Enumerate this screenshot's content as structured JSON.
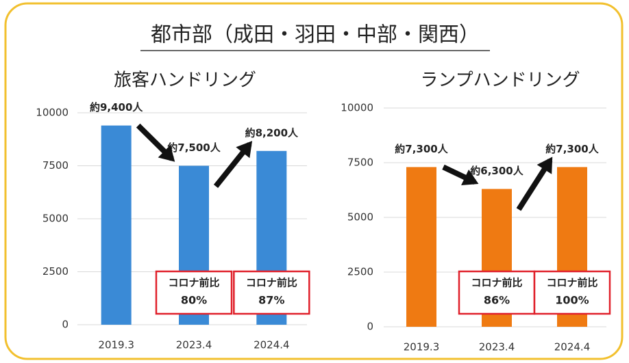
{
  "title": "都市部（成田・羽田・中部・関西）",
  "chart_data": [
    {
      "type": "bar",
      "title": "旅客ハンドリング",
      "categories": [
        "2019.3",
        "2023.4",
        "2024.4"
      ],
      "values": [
        9400,
        7500,
        8200
      ],
      "value_labels": [
        "約9,400人",
        "約7,500人",
        "約8,200人"
      ],
      "color": "#3a8ad6",
      "ylim": [
        0,
        10000
      ],
      "yticks": [
        0,
        2500,
        5000,
        7500,
        10000
      ],
      "grid": true,
      "annotations": [
        {
          "category": "2023.4",
          "label": "コロナ前比",
          "text": "80%"
        },
        {
          "category": "2024.4",
          "label": "コロナ前比",
          "text": "87%"
        }
      ]
    },
    {
      "type": "bar",
      "title": "ランプハンドリング",
      "categories": [
        "2019.3",
        "2023.4",
        "2024.4"
      ],
      "values": [
        7300,
        6300,
        7300
      ],
      "value_labels": [
        "約7,300人",
        "約6,300人",
        "約7,300人"
      ],
      "color": "#ef7a12",
      "ylim": [
        0,
        10000
      ],
      "yticks": [
        0,
        2500,
        5000,
        7500,
        10000
      ],
      "grid": true,
      "annotations": [
        {
          "category": "2023.4",
          "label": "コロナ前比",
          "text": "86%"
        },
        {
          "category": "2024.4",
          "label": "コロナ前比",
          "text": "100%"
        }
      ]
    }
  ]
}
